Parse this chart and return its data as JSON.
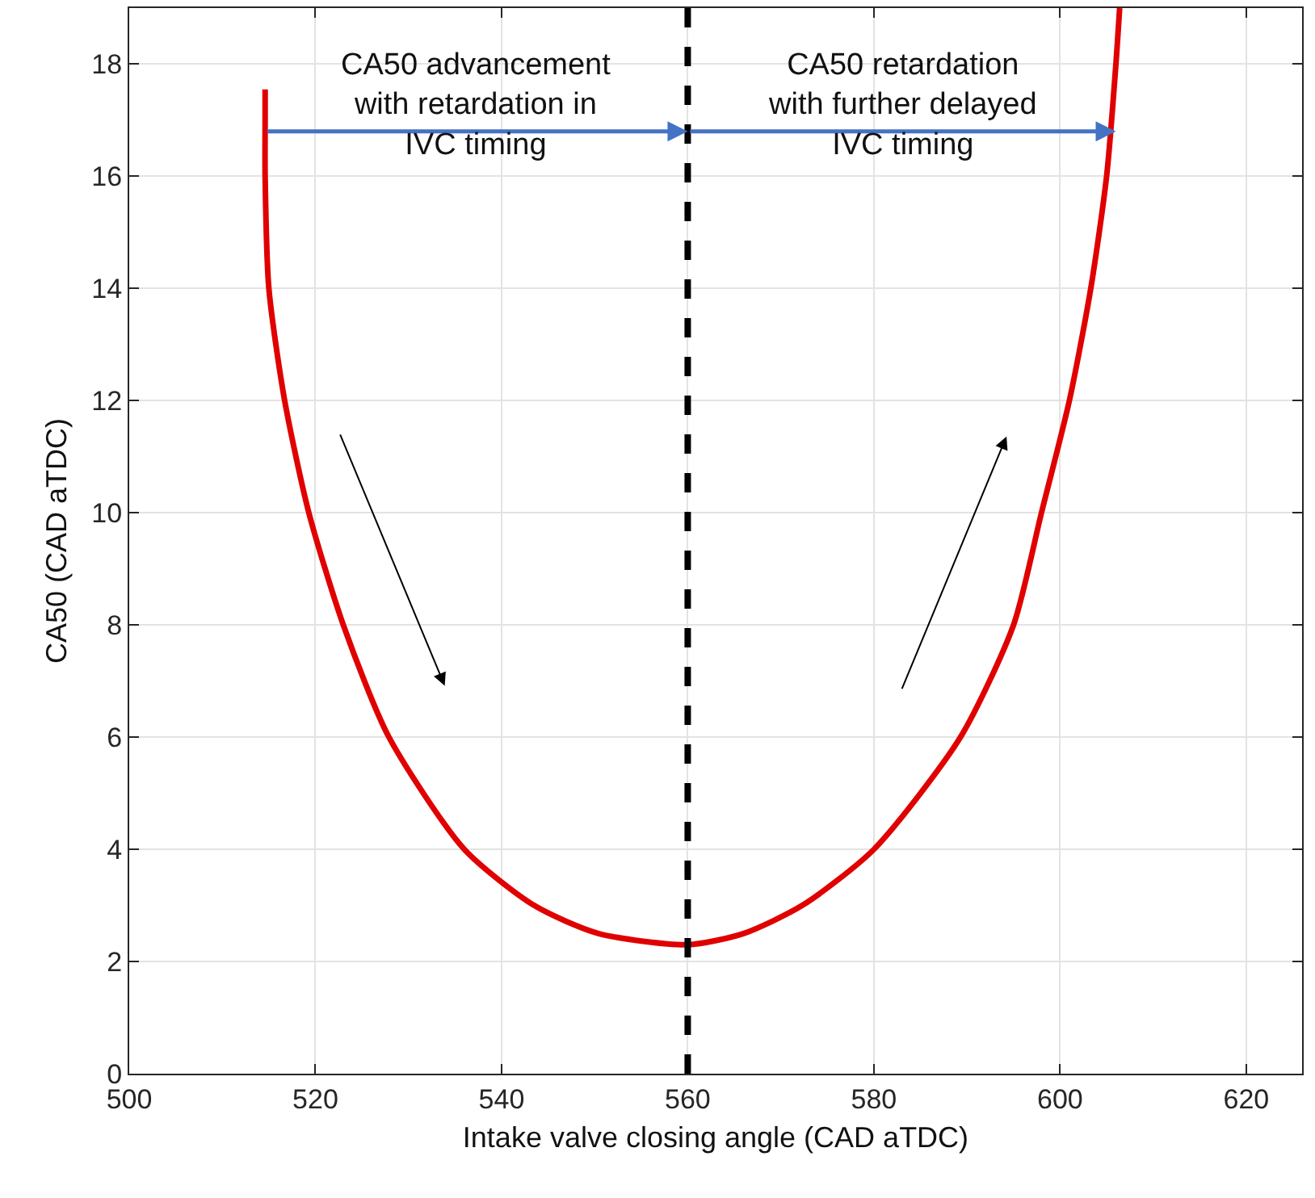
{
  "chart_data": {
    "type": "line",
    "xlabel": "Intake valve closing angle (CAD aTDC)",
    "ylabel": "CA50 (CAD aTDC)",
    "xlim": [
      500,
      626
    ],
    "xticks": [
      500,
      520,
      540,
      560,
      580,
      600,
      620
    ],
    "ylim": [
      0,
      19
    ],
    "yticks": [
      0,
      2,
      4,
      6,
      8,
      10,
      12,
      14,
      16,
      18
    ],
    "grid": true,
    "marker": "none",
    "line_style": "solid",
    "series": [
      {
        "color": "#e00000",
        "x": [
          514.6,
          514.6,
          514.6,
          515.0,
          516.7,
          519.3,
          523.0,
          527.9,
          536.0,
          543.5,
          550.4,
          560.0,
          566.0,
          572.3,
          580.0,
          589.3,
          595.0,
          598.0,
          601.0,
          603.3,
          605.0,
          606.0,
          606.4
        ],
        "values": [
          17.55,
          17,
          16,
          14,
          12,
          10,
          8,
          6,
          4,
          3,
          2.5,
          2.3,
          2.5,
          3,
          4,
          6,
          8,
          10,
          12,
          14,
          16,
          18,
          19
        ]
      }
    ],
    "ref_lines": [
      {
        "axis": "x",
        "value": 560,
        "color": "#000000",
        "line_style": "dashed"
      }
    ],
    "annotations": [
      {
        "text": "CA50 advancement\nwith retardation in\nIVC timing",
        "x": 560,
        "y": 16.8
      },
      {
        "text": "CA50 retardation\nwith further delayed\nIVC timing",
        "x": 606,
        "y": 16.8
      }
    ]
  }
}
